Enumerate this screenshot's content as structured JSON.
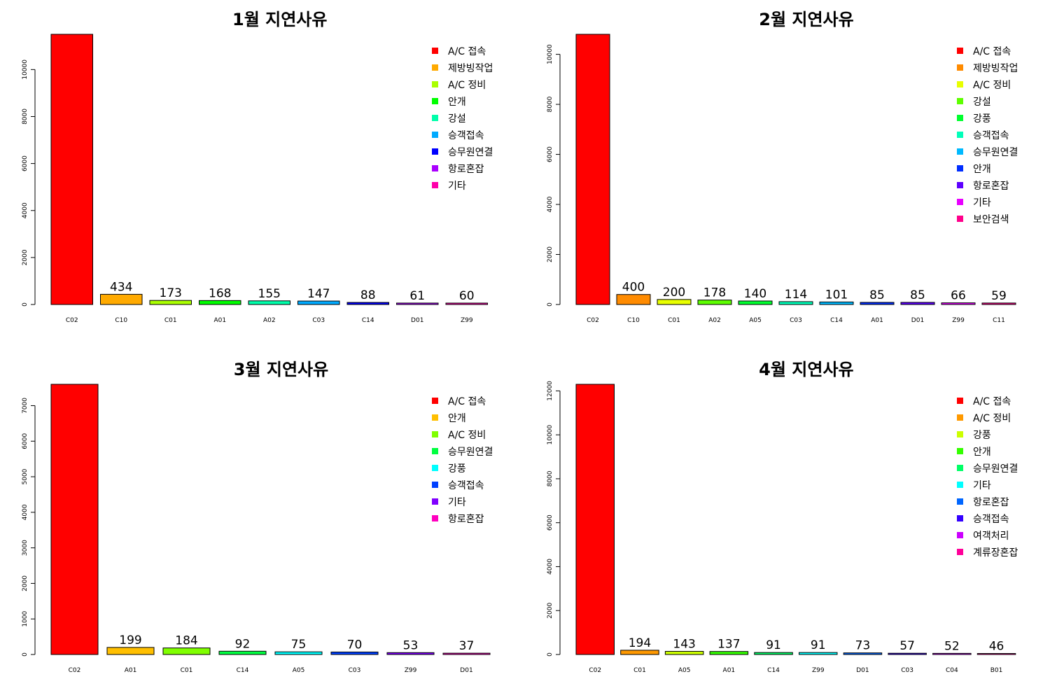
{
  "chart_data": [
    {
      "type": "bar",
      "title": "1월 지연사유",
      "categories": [
        "C02",
        "C10",
        "C01",
        "A01",
        "A02",
        "C03",
        "C14",
        "D01",
        "Z99"
      ],
      "values": [
        11500,
        434,
        173,
        168,
        155,
        147,
        88,
        61,
        60
      ],
      "value_labels": [
        "",
        "434",
        "173",
        "168",
        "155",
        "147",
        "88",
        "61",
        "60"
      ],
      "colors": [
        "#FF0000",
        "#FFAA00",
        "#AAFF00",
        "#00FF00",
        "#00FFAA",
        "#00AAFF",
        "#0000FF",
        "#AA00FF",
        "#FF00AA"
      ],
      "ylim": [
        0,
        11500
      ],
      "yticks": [
        0,
        2000,
        4000,
        6000,
        8000,
        10000
      ],
      "legend_position": "top-right",
      "legend": [
        {
          "label": "A/C 접속",
          "color": "#FF0000"
        },
        {
          "label": "제방빙작업",
          "color": "#FFAA00"
        },
        {
          "label": "A/C 정비",
          "color": "#AAFF00"
        },
        {
          "label": "안개",
          "color": "#00FF00"
        },
        {
          "label": "강설",
          "color": "#00FFAA"
        },
        {
          "label": "승객접속",
          "color": "#00AAFF"
        },
        {
          "label": "승무원연결",
          "color": "#0000FF"
        },
        {
          "label": "항로혼잡",
          "color": "#AA00FF"
        },
        {
          "label": "기타",
          "color": "#FF00AA"
        }
      ]
    },
    {
      "type": "bar",
      "title": "2월 지연사유",
      "categories": [
        "C02",
        "C10",
        "C01",
        "A02",
        "A05",
        "C03",
        "C14",
        "A01",
        "D01",
        "Z99",
        "C11"
      ],
      "values": [
        10800,
        400,
        200,
        178,
        140,
        114,
        101,
        85,
        85,
        66,
        59
      ],
      "value_labels": [
        "",
        "400",
        "200",
        "178",
        "140",
        "114",
        "101",
        "85",
        "85",
        "66",
        "59"
      ],
      "colors": [
        "#FF0000",
        "#FF8B00",
        "#E8FF00",
        "#5DFF00",
        "#00FF2E",
        "#00FFB9",
        "#00B9FF",
        "#002EFF",
        "#5D00FF",
        "#E800FF",
        "#FF008B"
      ],
      "ylim": [
        0,
        10800
      ],
      "yticks": [
        0,
        2000,
        4000,
        6000,
        8000,
        10000
      ],
      "legend_position": "top-right",
      "legend": [
        {
          "label": "A/C 접속",
          "color": "#FF0000"
        },
        {
          "label": "제방빙작업",
          "color": "#FF8B00"
        },
        {
          "label": "A/C 정비",
          "color": "#E8FF00"
        },
        {
          "label": "강설",
          "color": "#5DFF00"
        },
        {
          "label": "강풍",
          "color": "#00FF2E"
        },
        {
          "label": "승객접속",
          "color": "#00FFB9"
        },
        {
          "label": "승무원연결",
          "color": "#00B9FF"
        },
        {
          "label": "안개",
          "color": "#002EFF"
        },
        {
          "label": "항로혼잡",
          "color": "#5D00FF"
        },
        {
          "label": "기타",
          "color": "#E800FF"
        },
        {
          "label": "보안검색",
          "color": "#FF008B"
        }
      ]
    },
    {
      "type": "bar",
      "title": "3월 지연사유",
      "categories": [
        "C02",
        "A01",
        "C01",
        "C14",
        "A05",
        "C03",
        "Z99",
        "D01"
      ],
      "values": [
        7600,
        199,
        184,
        92,
        75,
        70,
        53,
        37
      ],
      "value_labels": [
        "",
        "199",
        "184",
        "92",
        "75",
        "70",
        "53",
        "37"
      ],
      "colors": [
        "#FF0000",
        "#FFBF00",
        "#80FF00",
        "#00FF40",
        "#00FFFF",
        "#0040FF",
        "#8000FF",
        "#FF00BF"
      ],
      "ylim": [
        0,
        7600
      ],
      "yticks": [
        0,
        1000,
        2000,
        3000,
        4000,
        5000,
        6000,
        7000
      ],
      "legend_position": "top-right",
      "legend": [
        {
          "label": "A/C 접속",
          "color": "#FF0000"
        },
        {
          "label": "안개",
          "color": "#FFBF00"
        },
        {
          "label": "A/C 정비",
          "color": "#80FF00"
        },
        {
          "label": "승무원연결",
          "color": "#00FF40"
        },
        {
          "label": "강풍",
          "color": "#00FFFF"
        },
        {
          "label": "승객접속",
          "color": "#0040FF"
        },
        {
          "label": "기타",
          "color": "#8000FF"
        },
        {
          "label": "항로혼잡",
          "color": "#FF00BF"
        }
      ]
    },
    {
      "type": "bar",
      "title": "4월 지연사유",
      "categories": [
        "C02",
        "C01",
        "A05",
        "A01",
        "C14",
        "Z99",
        "D01",
        "C03",
        "C04",
        "B01"
      ],
      "values": [
        12300,
        194,
        143,
        137,
        91,
        91,
        73,
        57,
        52,
        46
      ],
      "value_labels": [
        "",
        "194",
        "143",
        "137",
        "91",
        "91",
        "73",
        "57",
        "52",
        "46"
      ],
      "colors": [
        "#FF0000",
        "#FF9900",
        "#CCFF00",
        "#33FF00",
        "#00FF66",
        "#00FFFF",
        "#0066FF",
        "#3300FF",
        "#CC00FF",
        "#FF0099"
      ],
      "ylim": [
        0,
        12300
      ],
      "yticks": [
        0,
        2000,
        4000,
        6000,
        8000,
        10000,
        12000
      ],
      "legend_position": "top-right",
      "legend": [
        {
          "label": "A/C 접속",
          "color": "#FF0000"
        },
        {
          "label": "A/C 정비",
          "color": "#FF9900"
        },
        {
          "label": "강풍",
          "color": "#CCFF00"
        },
        {
          "label": "안개",
          "color": "#33FF00"
        },
        {
          "label": "승무원연결",
          "color": "#00FF66"
        },
        {
          "label": "기타",
          "color": "#00FFFF"
        },
        {
          "label": "항로혼잡",
          "color": "#0066FF"
        },
        {
          "label": "승객접속",
          "color": "#3300FF"
        },
        {
          "label": "여객처리",
          "color": "#CC00FF"
        },
        {
          "label": "계류장혼잡",
          "color": "#FF0099"
        }
      ]
    }
  ]
}
